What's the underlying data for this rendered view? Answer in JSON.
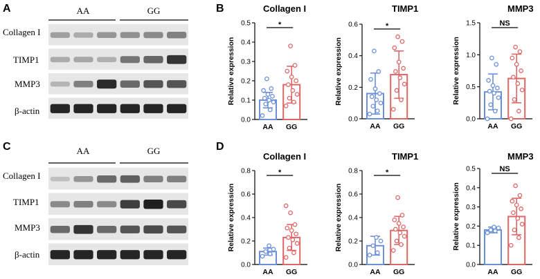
{
  "panels": {
    "A": "A",
    "B": "B",
    "C": "C",
    "D": "D"
  },
  "western_blots": [
    {
      "panel": "A",
      "groups": [
        "AA",
        "GG"
      ],
      "rows": [
        {
          "label": "Collagen I",
          "intensity": [
            0.35,
            0.3,
            0.4,
            0.42,
            0.45,
            0.5
          ]
        },
        {
          "label": "TIMP1",
          "intensity": [
            0.3,
            0.32,
            0.28,
            0.55,
            0.62,
            0.85
          ]
        },
        {
          "label": "MMP3",
          "intensity": [
            0.25,
            0.5,
            0.9,
            0.6,
            0.7,
            0.7
          ]
        },
        {
          "label": "β-actin",
          "intensity": [
            0.92,
            0.92,
            0.92,
            0.92,
            0.92,
            0.92
          ]
        }
      ]
    },
    {
      "panel": "C",
      "groups": [
        "AA",
        "GG"
      ],
      "rows": [
        {
          "label": "Collagen I",
          "intensity": [
            0.2,
            0.4,
            0.6,
            0.65,
            0.5,
            0.5
          ]
        },
        {
          "label": "TIMP1",
          "intensity": [
            0.45,
            0.5,
            0.45,
            0.8,
            0.95,
            0.75
          ]
        },
        {
          "label": "MMP3",
          "intensity": [
            0.6,
            0.85,
            0.6,
            0.7,
            0.75,
            0.7
          ]
        },
        {
          "label": "β-actin",
          "intensity": [
            0.92,
            0.92,
            0.92,
            0.92,
            0.92,
            0.92
          ]
        }
      ]
    }
  ],
  "chart_data": [
    {
      "panel": "B",
      "type": "bar",
      "title": "Collagen I",
      "ylabel": "Relative expression",
      "categories": [
        "AA",
        "GG"
      ],
      "ylim": [
        0,
        0.5
      ],
      "yticks": [
        0,
        0.1,
        0.2,
        0.3,
        0.4,
        0.5
      ],
      "ytick_labels": [
        "0.0",
        "0.1",
        "0.2",
        "0.3",
        "0.4",
        "0.5"
      ],
      "means": [
        0.1,
        0.18
      ],
      "errors": [
        0.04,
        0.095
      ],
      "points": [
        [
          0.02,
          0.05,
          0.08,
          0.09,
          0.1,
          0.11,
          0.12,
          0.13,
          0.15,
          0.16,
          0.21
        ],
        [
          0.07,
          0.09,
          0.11,
          0.13,
          0.15,
          0.18,
          0.2,
          0.22,
          0.25,
          0.28,
          0.38
        ]
      ],
      "significance": "*"
    },
    {
      "panel": "B",
      "type": "bar",
      "title": "TIMP1",
      "ylabel": "Relative expression",
      "categories": [
        "AA",
        "GG"
      ],
      "ylim": [
        0,
        0.6
      ],
      "yticks": [
        0,
        0.2,
        0.4,
        0.6
      ],
      "ytick_labels": [
        "0.0",
        "0.2",
        "0.4",
        "0.6"
      ],
      "means": [
        0.16,
        0.28
      ],
      "errors": [
        0.13,
        0.15
      ],
      "points": [
        [
          0.03,
          0.05,
          0.08,
          0.1,
          0.12,
          0.14,
          0.16,
          0.19,
          0.25,
          0.3,
          0.43
        ],
        [
          0.06,
          0.12,
          0.18,
          0.22,
          0.26,
          0.3,
          0.32,
          0.36,
          0.45,
          0.49,
          0.52
        ]
      ],
      "significance": "*"
    },
    {
      "panel": "B",
      "type": "bar",
      "title": "MMP3",
      "ylabel": "Relative expression",
      "categories": [
        "AA",
        "GG"
      ],
      "ylim": [
        0,
        1.5
      ],
      "yticks": [
        0,
        0.5,
        1.0,
        1.5
      ],
      "ytick_labels": [
        "0.0",
        "0.5",
        "1.0",
        "1.5"
      ],
      "means": [
        0.42,
        0.63
      ],
      "errors": [
        0.28,
        0.38
      ],
      "points": [
        [
          0.0,
          0.12,
          0.22,
          0.33,
          0.4,
          0.43,
          0.48,
          0.52,
          0.6,
          0.85,
          0.95
        ],
        [
          0.0,
          0.12,
          0.3,
          0.45,
          0.55,
          0.65,
          0.75,
          0.85,
          0.95,
          1.05,
          1.12
        ]
      ],
      "significance": "NS"
    },
    {
      "panel": "D",
      "type": "bar",
      "title": "Collagen I",
      "ylabel": "Relative expression",
      "categories": [
        "AA",
        "GG"
      ],
      "ylim": [
        0,
        0.8
      ],
      "yticks": [
        0,
        0.2,
        0.4,
        0.6,
        0.8
      ],
      "ytick_labels": [
        "0.0",
        "0.2",
        "0.4",
        "0.6",
        "0.8"
      ],
      "means": [
        0.11,
        0.23
      ],
      "errors": [
        0.03,
        0.11
      ],
      "points": [
        [
          0.07,
          0.09,
          0.11,
          0.13,
          0.16
        ],
        [
          0.06,
          0.1,
          0.14,
          0.18,
          0.21,
          0.23,
          0.26,
          0.29,
          0.31,
          0.34,
          0.44,
          0.5
        ]
      ],
      "significance": "*"
    },
    {
      "panel": "D",
      "type": "bar",
      "title": "TIMP1",
      "ylabel": "Relative expression",
      "categories": [
        "AA",
        "GG"
      ],
      "ylim": [
        0,
        0.8
      ],
      "yticks": [
        0,
        0.2,
        0.4,
        0.6,
        0.8
      ],
      "ytick_labels": [
        "0.0",
        "0.2",
        "0.4",
        "0.6",
        "0.8"
      ],
      "means": [
        0.16,
        0.29
      ],
      "errors": [
        0.08,
        0.12
      ],
      "points": [
        [
          0.08,
          0.1,
          0.16,
          0.2,
          0.23
        ],
        [
          0.12,
          0.17,
          0.2,
          0.24,
          0.27,
          0.3,
          0.32,
          0.35,
          0.38,
          0.42,
          0.57
        ]
      ],
      "significance": "*"
    },
    {
      "panel": "D",
      "type": "bar",
      "title": "MMP3",
      "ylabel": "Relative expression",
      "categories": [
        "AA",
        "GG"
      ],
      "ylim": [
        0,
        0.5
      ],
      "yticks": [
        0,
        0.1,
        0.2,
        0.3,
        0.4,
        0.5
      ],
      "ytick_labels": [
        "0.0",
        "0.1",
        "0.2",
        "0.3",
        "0.4",
        "0.5"
      ],
      "means": [
        0.18,
        0.25
      ],
      "errors": [
        0.015,
        0.095
      ],
      "points": [
        [
          0.165,
          0.175,
          0.18,
          0.19,
          0.195
        ],
        [
          0.1,
          0.14,
          0.18,
          0.21,
          0.24,
          0.27,
          0.29,
          0.31,
          0.33,
          0.36,
          0.41
        ]
      ],
      "significance": "NS"
    }
  ],
  "colors": {
    "AA": "#6b8fdb",
    "GG": "#e06666",
    "band": "#1a1a1a"
  }
}
